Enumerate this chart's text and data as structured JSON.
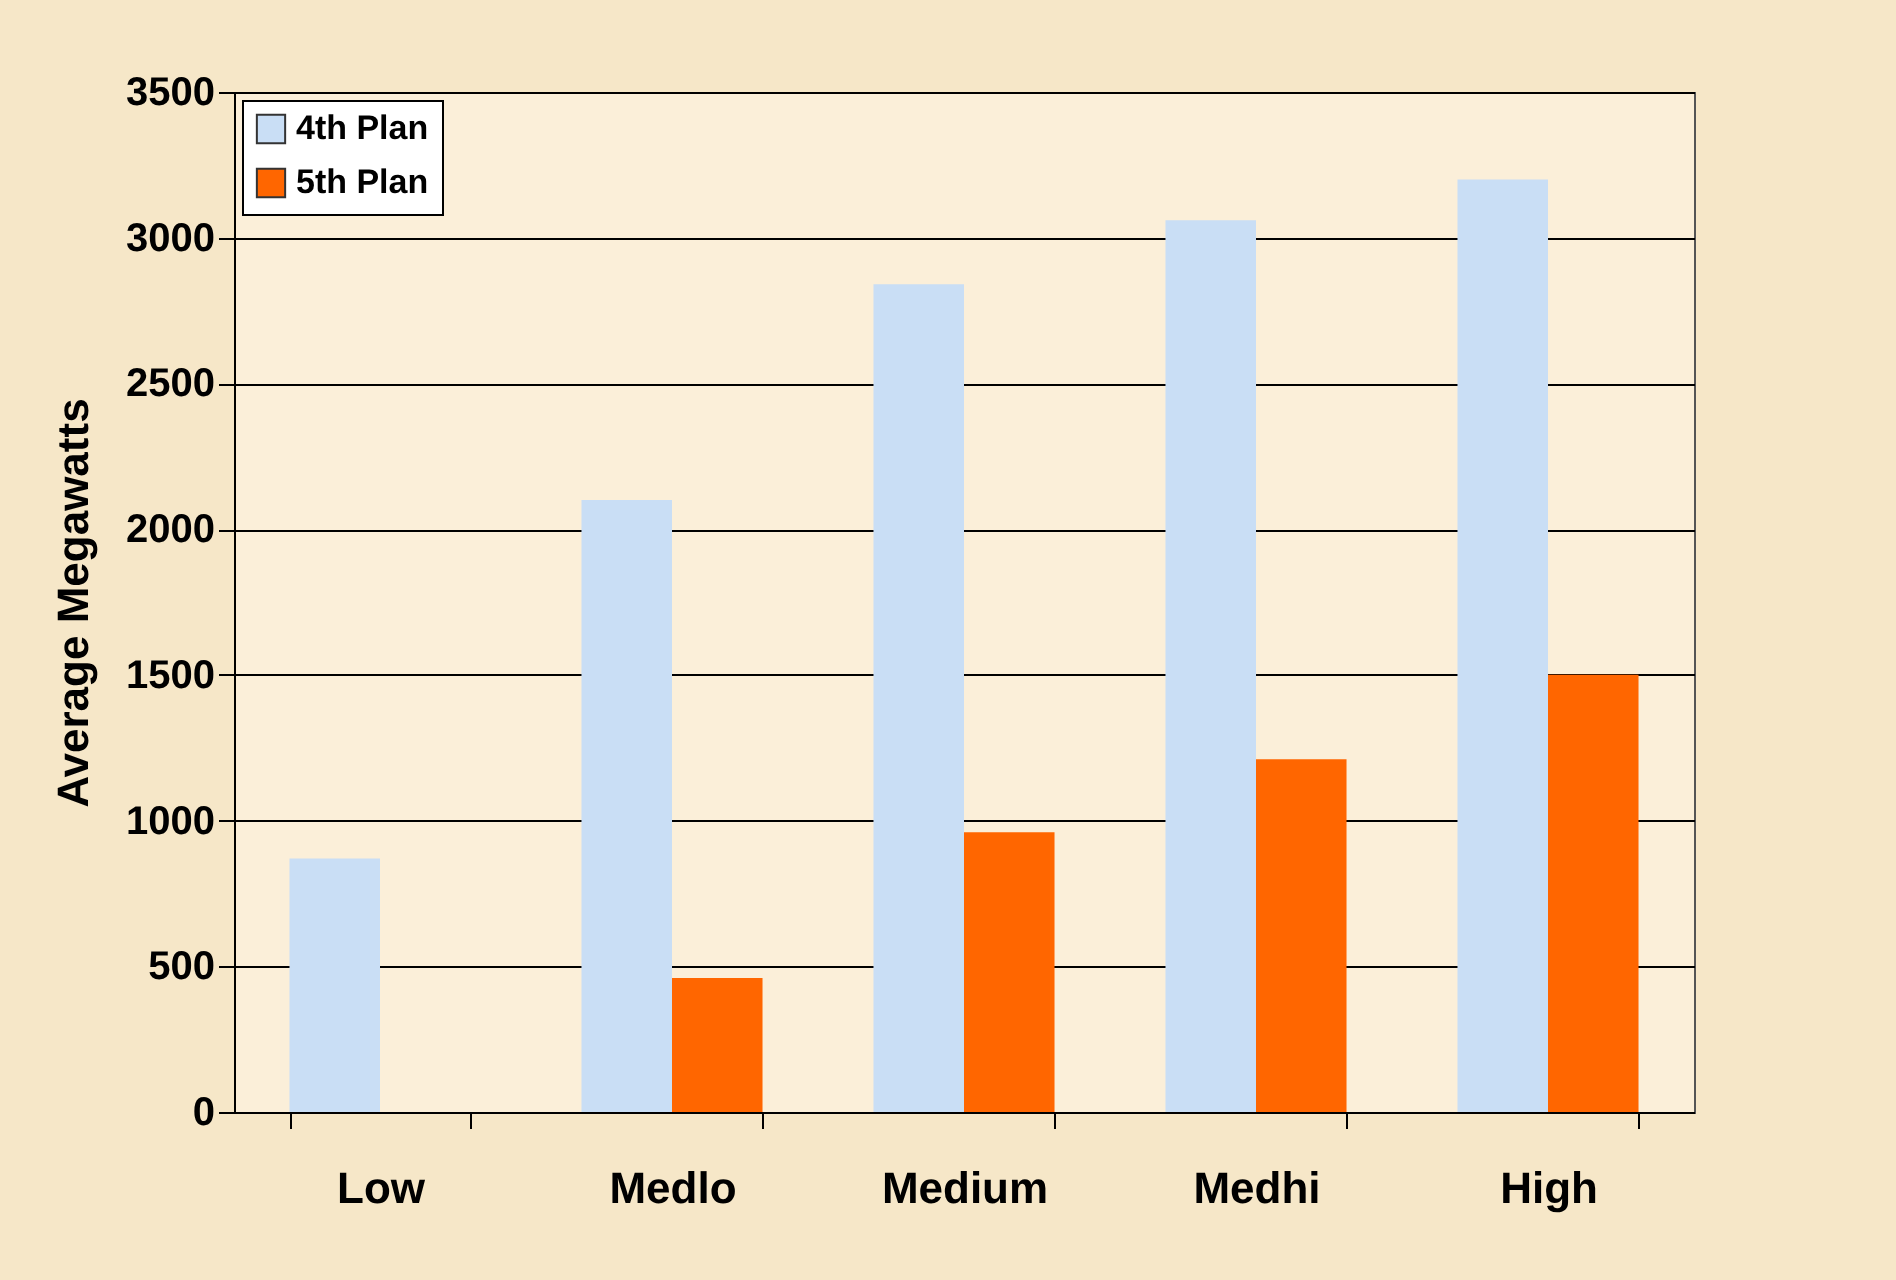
{
  "chart_data": {
    "type": "bar",
    "ylabel": "Average Megawatts",
    "categories": [
      "Low",
      "Medlo",
      "Medium",
      "Medhi",
      "High"
    ],
    "series": [
      {
        "name": "4th Plan",
        "color": "#c9def5",
        "values": [
          870,
          2100,
          2840,
          3060,
          3200
        ]
      },
      {
        "name": "5th Plan",
        "color": "#ff6600",
        "values": [
          0,
          460,
          960,
          1210,
          1500
        ]
      }
    ],
    "ylim": [
      0,
      3500
    ],
    "yticks": [
      0,
      500,
      1000,
      1500,
      2000,
      2500,
      3000,
      3500
    ],
    "grid": "y",
    "legend": "top left"
  }
}
